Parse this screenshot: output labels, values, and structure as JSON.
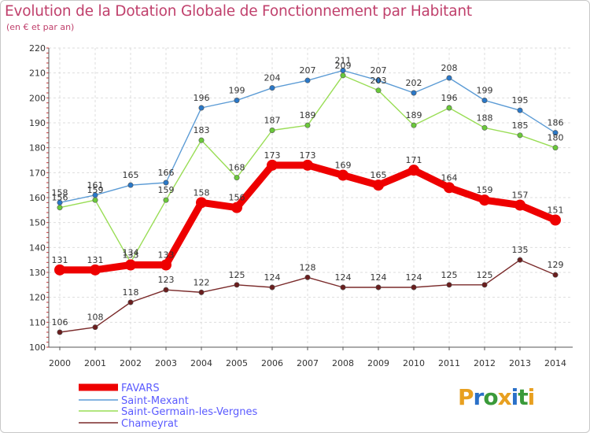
{
  "header": {
    "title": "Evolution de la Dotation Globale de Fonctionnement par Habitant",
    "subtitle": "(en € et par an)"
  },
  "brand": {
    "text": "Proxiti",
    "letter_colors": [
      "#e8a020",
      "#2a70c8",
      "#3a9a3a",
      "#e8a020",
      "#2a70c8",
      "#3a9a3a",
      "#e8a020"
    ]
  },
  "chart_data": {
    "type": "line",
    "title": "Evolution de la Dotation Globale de Fonctionnement par Habitant",
    "subtitle": "(en € et par an)",
    "x": [
      "2000",
      "2001",
      "2002",
      "2003",
      "2004",
      "2005",
      "2006",
      "2007",
      "2008",
      "2009",
      "2010",
      "2011",
      "2012",
      "2013",
      "2014"
    ],
    "ylim": [
      100,
      220
    ],
    "yticks": [
      100,
      110,
      120,
      130,
      140,
      150,
      160,
      170,
      180,
      190,
      200,
      210,
      220
    ],
    "grid": true,
    "legend_position": "bottom-left",
    "series": [
      {
        "name": "FAVARS",
        "color": "#ee0000",
        "emphasis": "thick",
        "values": [
          131,
          131,
          133,
          133,
          158,
          156,
          173,
          173,
          169,
          165,
          171,
          164,
          159,
          157,
          151
        ],
        "labels": [
          "131",
          "131",
          "133",
          "133",
          "158",
          "156",
          "173",
          "173",
          "169",
          "165",
          "171",
          "164",
          "159",
          "157",
          "151"
        ]
      },
      {
        "name": "Saint-Mexant",
        "color": "#5b9bd5",
        "marker_color": "#2a78c8",
        "values": [
          158,
          161,
          165,
          166,
          196,
          199,
          204,
          207,
          211,
          207,
          202,
          208,
          199,
          195,
          186
        ],
        "labels": [
          "158",
          "161",
          "165",
          "166",
          "196",
          "199",
          "204",
          "207",
          "211",
          "207",
          "202",
          "208",
          "199",
          "195",
          "186"
        ]
      },
      {
        "name": "Saint-Germain-les-Vergnes",
        "color": "#99dd55",
        "marker_color": "#6ac93a",
        "values": [
          156,
          159,
          134,
          159,
          183,
          168,
          187,
          189,
          209,
          203,
          189,
          196,
          188,
          185,
          180
        ],
        "labels": [
          "156",
          "159",
          "134",
          "159",
          "183",
          "168",
          "187",
          "189",
          "209",
          "203",
          "189",
          "196",
          "188",
          "185",
          "180"
        ]
      },
      {
        "name": "Chameyrat",
        "color": "#7a2a2a",
        "marker_color": "#6a1e1e",
        "values": [
          106,
          108,
          118,
          123,
          122,
          125,
          124,
          128,
          124,
          124,
          124,
          125,
          125,
          135,
          129
        ],
        "labels": [
          "106",
          "108",
          "118",
          "123",
          "122",
          "125",
          "124",
          "128",
          "124",
          "124",
          "124",
          "125",
          "125",
          "135",
          "129"
        ]
      }
    ]
  }
}
